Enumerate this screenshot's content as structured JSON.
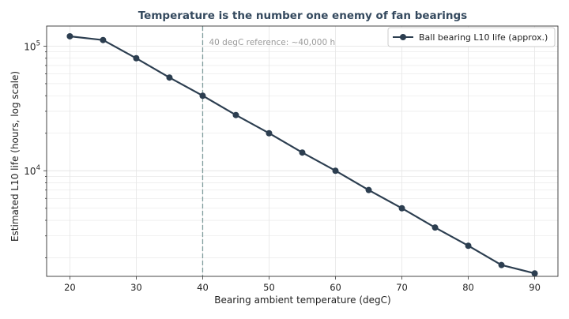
{
  "chart_data": {
    "type": "line",
    "title": "Temperature is the number one enemy of fan bearings",
    "xlabel": "Bearing ambient temperature (degC)",
    "ylabel": "Estimated L10 life (hours, log scale)",
    "xlim": [
      16.5,
      93.5
    ],
    "ylim": [
      1420,
      145000
    ],
    "yscale": "log",
    "x_ticks": [
      20,
      30,
      40,
      50,
      60,
      70,
      80,
      90
    ],
    "y_major_ticks": [
      {
        "value": 10000,
        "base": "10",
        "exp": "4"
      },
      {
        "value": 100000,
        "base": "10",
        "exp": "5"
      }
    ],
    "grid": true,
    "legend_position": "top-right",
    "colors": {
      "series": "#2c3e50",
      "reference_line": "#7f9c9c",
      "title": "#34495e",
      "annotation": "#9a9a9a",
      "grid": "#e6e6e6"
    },
    "series": [
      {
        "name": "Ball bearing L10 life (approx.)",
        "x": [
          20,
          25,
          30,
          35,
          40,
          45,
          50,
          55,
          60,
          65,
          70,
          75,
          80,
          85,
          90
        ],
        "y": [
          120000,
          112000,
          80000,
          56000,
          40000,
          28000,
          20000,
          14000,
          10000,
          7000,
          5000,
          3500,
          2500,
          1750,
          1500
        ]
      }
    ],
    "reference_line": {
      "x": 40,
      "label": "40 degC reference: ~40,000 h"
    }
  }
}
